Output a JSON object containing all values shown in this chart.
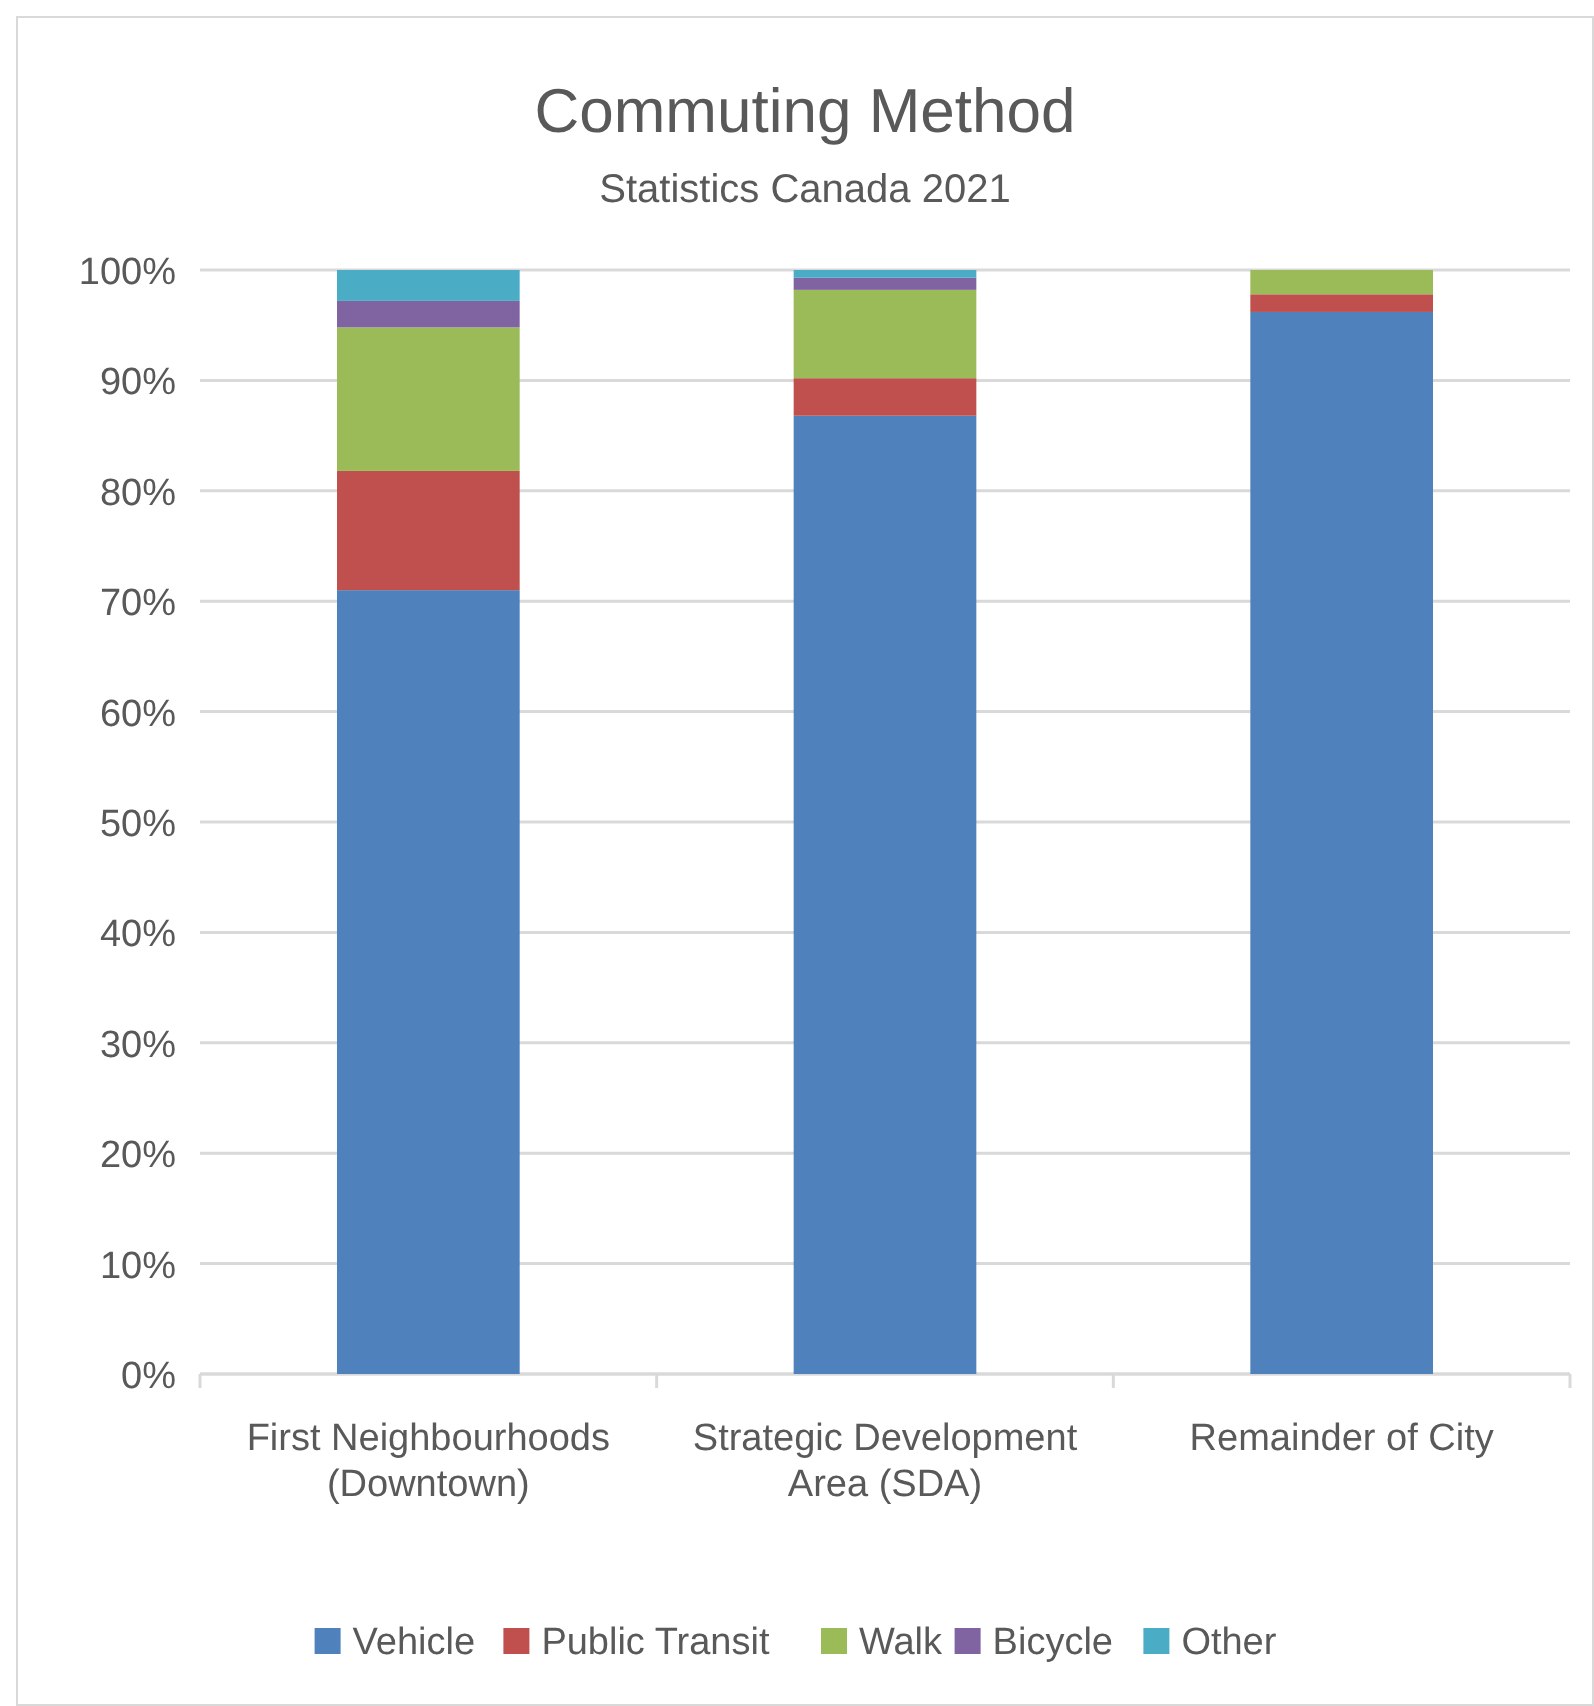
{
  "chart_data": {
    "type": "bar",
    "title": "Commuting Method",
    "subtitle": "Statistics Canada 2021",
    "stacked": true,
    "categories": [
      "First Neighbourhoods (Downtown)",
      "Strategic Development Area (SDA)",
      "Remainder of City"
    ],
    "series": [
      {
        "name": "Vehicle",
        "color": "#4f81bd",
        "values": [
          71.0,
          86.8,
          96.2
        ]
      },
      {
        "name": "Public Transit",
        "color": "#c0504d",
        "values": [
          10.8,
          3.4,
          1.6
        ]
      },
      {
        "name": "Walk",
        "color": "#9bbb59",
        "values": [
          13.0,
          8.0,
          2.2
        ]
      },
      {
        "name": "Bicycle",
        "color": "#8064a2",
        "values": [
          2.4,
          1.1,
          0
        ]
      },
      {
        "name": "Other",
        "color": "#4bacc6",
        "values": [
          2.8,
          0.7,
          0
        ]
      }
    ],
    "ylim": [
      0,
      100
    ],
    "yticks": [
      {
        "value": 0,
        "label": "0%"
      },
      {
        "value": 10,
        "label": "10%"
      },
      {
        "value": 20,
        "label": "20%"
      },
      {
        "value": 30,
        "label": "30%"
      },
      {
        "value": 40,
        "label": "40%"
      },
      {
        "value": 50,
        "label": "50%"
      },
      {
        "value": 60,
        "label": "60%"
      },
      {
        "value": 70,
        "label": "70%"
      },
      {
        "value": 80,
        "label": "80%"
      },
      {
        "value": 90,
        "label": "90%"
      },
      {
        "value": 100,
        "label": "100%"
      }
    ],
    "grid": "y",
    "legend": "bottom"
  }
}
